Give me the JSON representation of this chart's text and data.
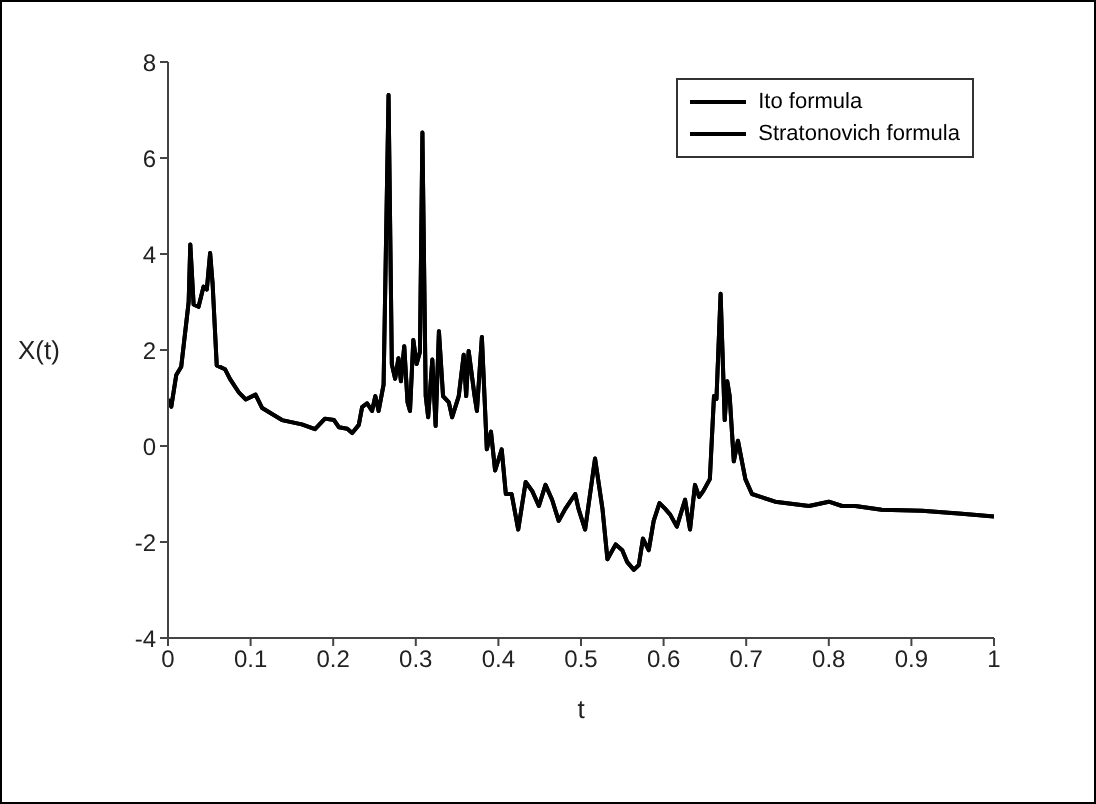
{
  "chart_data": {
    "type": "line",
    "xlabel": "t",
    "ylabel": "X(t)",
    "x": [
      0,
      0.004,
      0.01,
      0.016,
      0.025,
      0.027,
      0.031,
      0.037,
      0.043,
      0.047,
      0.051,
      0.054,
      0.059,
      0.069,
      0.075,
      0.086,
      0.094,
      0.106,
      0.114,
      0.138,
      0.162,
      0.178,
      0.19,
      0.201,
      0.207,
      0.217,
      0.223,
      0.231,
      0.235,
      0.241,
      0.247,
      0.251,
      0.255,
      0.261,
      0.267,
      0.271,
      0.275,
      0.279,
      0.282,
      0.286,
      0.29,
      0.293,
      0.297,
      0.301,
      0.305,
      0.308,
      0.312,
      0.315,
      0.32,
      0.324,
      0.328,
      0.333,
      0.34,
      0.344,
      0.352,
      0.358,
      0.361,
      0.364,
      0.371,
      0.374,
      0.38,
      0.386,
      0.391,
      0.396,
      0.404,
      0.409,
      0.416,
      0.424,
      0.433,
      0.441,
      0.449,
      0.457,
      0.465,
      0.473,
      0.481,
      0.493,
      0.497,
      0.505,
      0.517,
      0.526,
      0.532,
      0.542,
      0.55,
      0.556,
      0.564,
      0.57,
      0.575,
      0.582,
      0.588,
      0.595,
      0.602,
      0.608,
      0.616,
      0.626,
      0.632,
      0.638,
      0.643,
      0.648,
      0.656,
      0.661,
      0.664,
      0.669,
      0.674,
      0.677,
      0.68,
      0.685,
      0.69,
      0.699,
      0.707,
      0.735,
      0.776,
      0.8,
      0.816,
      0.832,
      0.864,
      0.913,
      0.961,
      1
    ],
    "series": [
      {
        "name": "Ito formula",
        "color": "#000000",
        "values": [
          0.97,
          0.82,
          1.48,
          1.65,
          3.0,
          4.2,
          2.95,
          2.9,
          3.32,
          3.26,
          4.02,
          3.38,
          1.68,
          1.6,
          1.4,
          1.11,
          0.97,
          1.07,
          0.79,
          0.54,
          0.45,
          0.35,
          0.57,
          0.54,
          0.39,
          0.36,
          0.27,
          0.44,
          0.81,
          0.89,
          0.73,
          1.04,
          0.73,
          1.28,
          7.31,
          1.7,
          1.4,
          1.83,
          1.35,
          2.08,
          0.91,
          0.73,
          2.21,
          1.71,
          1.96,
          6.53,
          1.04,
          0.6,
          1.8,
          0.42,
          2.39,
          1.04,
          0.91,
          0.6,
          1.04,
          1.9,
          1.04,
          1.98,
          1.06,
          0.73,
          2.27,
          -0.07,
          0.3,
          -0.51,
          -0.07,
          -1.0,
          -1.0,
          -1.74,
          -0.75,
          -0.94,
          -1.25,
          -0.81,
          -1.12,
          -1.56,
          -1.31,
          -1.0,
          -1.31,
          -1.74,
          -0.26,
          -1.31,
          -2.36,
          -2.05,
          -2.17,
          -2.42,
          -2.58,
          -2.48,
          -1.93,
          -2.17,
          -1.56,
          -1.19,
          -1.31,
          -1.43,
          -1.68,
          -1.12,
          -1.74,
          -0.81,
          -1.06,
          -0.94,
          -0.69,
          1.04,
          0.98,
          3.17,
          0.54,
          1.35,
          1.04,
          -0.32,
          0.11,
          -0.69,
          -1.0,
          -1.16,
          -1.25,
          -1.16,
          -1.25,
          -1.25,
          -1.33,
          -1.35,
          -1.41,
          -1.47
        ]
      },
      {
        "name": "Stratonovich formula",
        "color": "#000000",
        "values": [
          0.97,
          0.82,
          1.48,
          1.65,
          3.0,
          4.2,
          2.95,
          2.9,
          3.32,
          3.26,
          4.02,
          3.38,
          1.68,
          1.6,
          1.4,
          1.11,
          0.97,
          1.07,
          0.79,
          0.54,
          0.45,
          0.35,
          0.57,
          0.54,
          0.39,
          0.36,
          0.27,
          0.44,
          0.81,
          0.89,
          0.73,
          1.04,
          0.73,
          1.28,
          7.31,
          1.7,
          1.4,
          1.83,
          1.35,
          2.08,
          0.91,
          0.73,
          2.21,
          1.71,
          1.96,
          6.53,
          1.04,
          0.6,
          1.8,
          0.42,
          2.39,
          1.04,
          0.91,
          0.6,
          1.04,
          1.9,
          1.04,
          1.98,
          1.06,
          0.73,
          2.27,
          -0.07,
          0.3,
          -0.51,
          -0.07,
          -1.0,
          -1.0,
          -1.74,
          -0.75,
          -0.94,
          -1.25,
          -0.81,
          -1.12,
          -1.56,
          -1.31,
          -1.0,
          -1.31,
          -1.74,
          -0.26,
          -1.31,
          -2.36,
          -2.05,
          -2.17,
          -2.42,
          -2.58,
          -2.48,
          -1.93,
          -2.17,
          -1.56,
          -1.19,
          -1.31,
          -1.43,
          -1.68,
          -1.12,
          -1.74,
          -0.81,
          -1.06,
          -0.94,
          -0.69,
          1.04,
          0.98,
          3.17,
          0.54,
          1.35,
          1.04,
          -0.32,
          0.11,
          -0.69,
          -1.0,
          -1.16,
          -1.25,
          -1.16,
          -1.25,
          -1.25,
          -1.33,
          -1.35,
          -1.41,
          -1.47
        ]
      }
    ],
    "xlim": [
      0,
      1
    ],
    "xticks": [
      0,
      0.1,
      0.2,
      0.3,
      0.4,
      0.5,
      0.6,
      0.7,
      0.8,
      0.9,
      1
    ],
    "ylim": [
      -4,
      8
    ],
    "yticks": [
      -4,
      -2,
      0,
      2,
      4,
      6,
      8
    ],
    "grid": false,
    "legend": "top right",
    "marker": "none",
    "line_style": "solid"
  }
}
